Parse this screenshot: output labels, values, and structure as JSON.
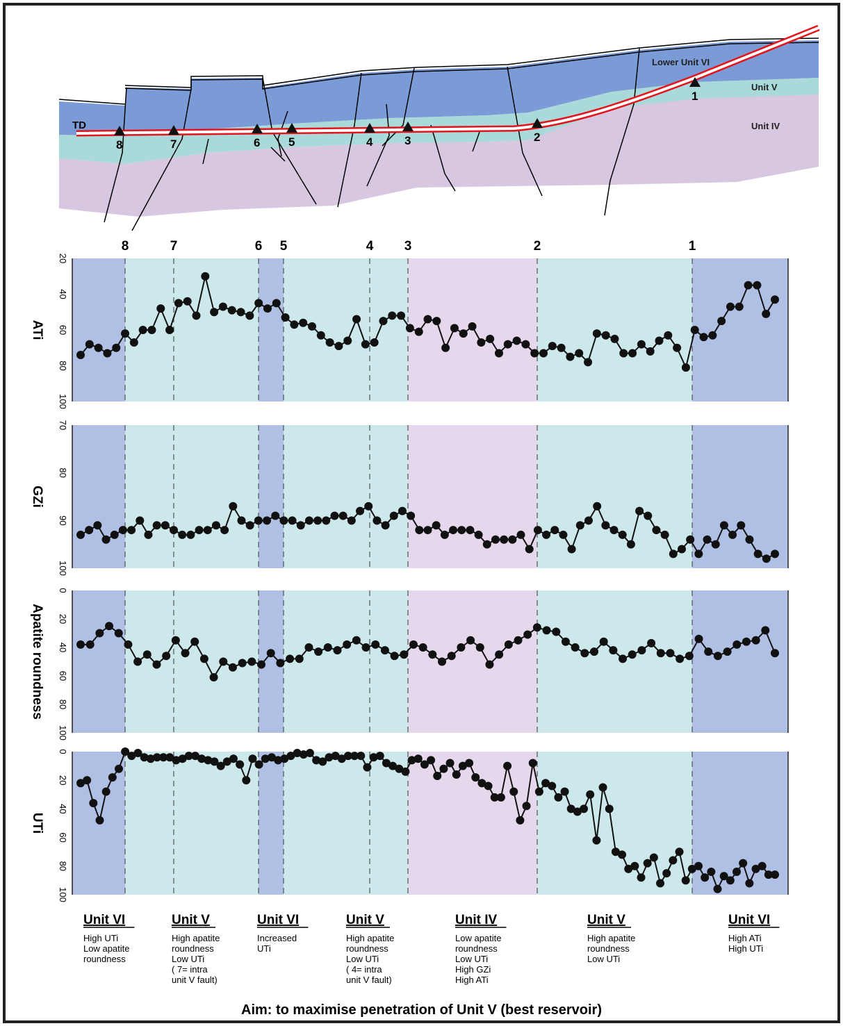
{
  "cross_section": {
    "td_label": "TD",
    "unit_labels": {
      "lower_unit_vi": "Lower Unit VI",
      "unit_v": "Unit V",
      "unit_iv": "Unit IV"
    },
    "markers": [
      {
        "id": "8"
      },
      {
        "id": "7"
      },
      {
        "id": "6"
      },
      {
        "id": "5"
      },
      {
        "id": "4"
      },
      {
        "id": "3"
      },
      {
        "id": "2"
      },
      {
        "id": "1"
      }
    ]
  },
  "colors": {
    "unit_vi": "#b0c0e4",
    "unit_v": "#cce8ea",
    "unit_iv": "#e5d8ec",
    "section_vi": "#7b9bd6",
    "section_v": "#a9dad9",
    "section_iv": "#d8c7e0",
    "well_path": "#e4141d"
  },
  "band_sequence": [
    {
      "unit": "VI",
      "from": 0,
      "to": 8
    },
    {
      "unit": "V",
      "from": 8,
      "to": 14
    },
    {
      "unit": "VI",
      "from": 14,
      "to": 15
    },
    {
      "unit": "V",
      "from": 15,
      "to": 25
    },
    {
      "unit": "IV",
      "from": 25,
      "to": 41
    },
    {
      "unit": "V",
      "from": 41,
      "to": 60
    },
    {
      "unit": "VI",
      "from": 60,
      "to": 73
    }
  ],
  "chart_data": [
    {
      "type": "line",
      "ylabel": "ATi",
      "ylim": [
        100,
        20
      ],
      "yticks": [
        "20",
        "40",
        "60",
        "80",
        "100"
      ],
      "values": [
        74,
        68,
        70,
        73,
        70,
        62,
        67,
        60,
        60,
        48,
        60,
        45,
        44,
        52,
        30,
        50,
        47,
        49,
        50,
        52,
        45,
        48,
        45,
        53,
        57,
        56,
        58,
        63,
        67,
        69,
        66,
        54,
        68,
        67,
        55,
        52,
        52,
        59,
        61,
        54,
        55,
        70,
        59,
        62,
        58,
        67,
        65,
        73,
        68,
        66,
        68,
        73,
        73,
        69,
        70,
        75,
        73,
        78,
        62,
        63,
        65,
        73,
        73,
        68,
        72,
        66,
        63,
        70,
        81,
        60,
        64,
        63,
        55,
        47,
        47,
        35,
        35,
        51,
        43
      ]
    },
    {
      "type": "line",
      "ylabel": "GZi",
      "ylim": [
        100,
        70
      ],
      "yticks": [
        "70",
        "80",
        "90",
        "100"
      ],
      "values": [
        93,
        92,
        91,
        94,
        93,
        92,
        92,
        90,
        93,
        91,
        91,
        92,
        93,
        93,
        92,
        92,
        91,
        92,
        87,
        90,
        91,
        90,
        90,
        89,
        90,
        90,
        91,
        90,
        90,
        90,
        89,
        89,
        90,
        88,
        87,
        90,
        91,
        89,
        88,
        89,
        92,
        92,
        91,
        93,
        92,
        92,
        92,
        93,
        95,
        94,
        94,
        94,
        93,
        96,
        92,
        93,
        92,
        93,
        96,
        91,
        90,
        87,
        91,
        92,
        93,
        95,
        88,
        89,
        92,
        93,
        97,
        96,
        94,
        97,
        94,
        95,
        91,
        93,
        91,
        94,
        97,
        98,
        97
      ]
    },
    {
      "type": "line",
      "ylabel": "Apatite roundness",
      "ylim": [
        100,
        0
      ],
      "yticks": [
        "0",
        "20",
        "40",
        "60",
        "80",
        "100"
      ],
      "values": [
        38,
        38,
        30,
        25,
        30,
        38,
        50,
        45,
        52,
        46,
        35,
        44,
        36,
        48,
        61,
        50,
        54,
        51,
        50,
        52,
        44,
        51,
        48,
        48,
        40,
        43,
        40,
        42,
        38,
        35,
        40,
        38,
        42,
        46,
        45,
        38,
        40,
        45,
        50,
        46,
        40,
        35,
        40,
        52,
        45,
        38,
        35,
        31,
        26,
        28,
        29,
        36,
        40,
        44,
        43,
        36,
        42,
        48,
        45,
        42,
        37,
        44,
        44,
        48,
        46,
        34,
        43,
        46,
        43,
        38,
        36,
        35,
        28,
        44
      ]
    },
    {
      "type": "line",
      "ylabel": "UTi",
      "ylim": [
        100,
        0
      ],
      "yticks": [
        "0",
        "20",
        "40",
        "60",
        "80",
        "100"
      ],
      "values": [
        22,
        20,
        36,
        48,
        28,
        18,
        12,
        0,
        3,
        1,
        4,
        5,
        4,
        4,
        4,
        6,
        5,
        3,
        3,
        5,
        6,
        7,
        10,
        7,
        5,
        9,
        20,
        5,
        9,
        5,
        4,
        6,
        5,
        3,
        1,
        2,
        1,
        6,
        7,
        4,
        3,
        5,
        3,
        3,
        3,
        11,
        4,
        3,
        8,
        10,
        12,
        14,
        6,
        5,
        9,
        6,
        17,
        12,
        8,
        16,
        10,
        8,
        18,
        22,
        24,
        32,
        32,
        10,
        28,
        48,
        38,
        8,
        28,
        22,
        24,
        32,
        28,
        40,
        42,
        40,
        30,
        62,
        25,
        40,
        70,
        72,
        82,
        80,
        88,
        78,
        74,
        92,
        85,
        76,
        70,
        90,
        82,
        80,
        88,
        84,
        96,
        87,
        90,
        84,
        78,
        92,
        82,
        80,
        86,
        86
      ]
    }
  ],
  "annotations": [
    {
      "title": "Unit VI",
      "lines": [
        "High UTi",
        "Low apatite",
        "roundness"
      ]
    },
    {
      "title": "Unit V",
      "lines": [
        "High apatite",
        "roundness",
        "Low UTi",
        "( 7= intra",
        "unit V fault)"
      ]
    },
    {
      "title": "Unit VI",
      "lines": [
        "Increased",
        "UTi"
      ]
    },
    {
      "title": "Unit V",
      "lines": [
        "High apatite",
        "roundness",
        "Low UTi",
        "( 4= intra",
        "unit V fault)"
      ]
    },
    {
      "title": "Unit IV",
      "lines": [
        "Low apatite",
        "roundness",
        "Low UTi",
        "High GZi",
        "High ATi"
      ]
    },
    {
      "title": "Unit V",
      "lines": [
        "High apatite",
        "roundness",
        "Low UTi"
      ]
    },
    {
      "title": "Unit VI",
      "lines": [
        "High ATi",
        "High UTi"
      ]
    }
  ],
  "footer": "Aim: to maximise penetration of  Unit V (best reservoir)"
}
